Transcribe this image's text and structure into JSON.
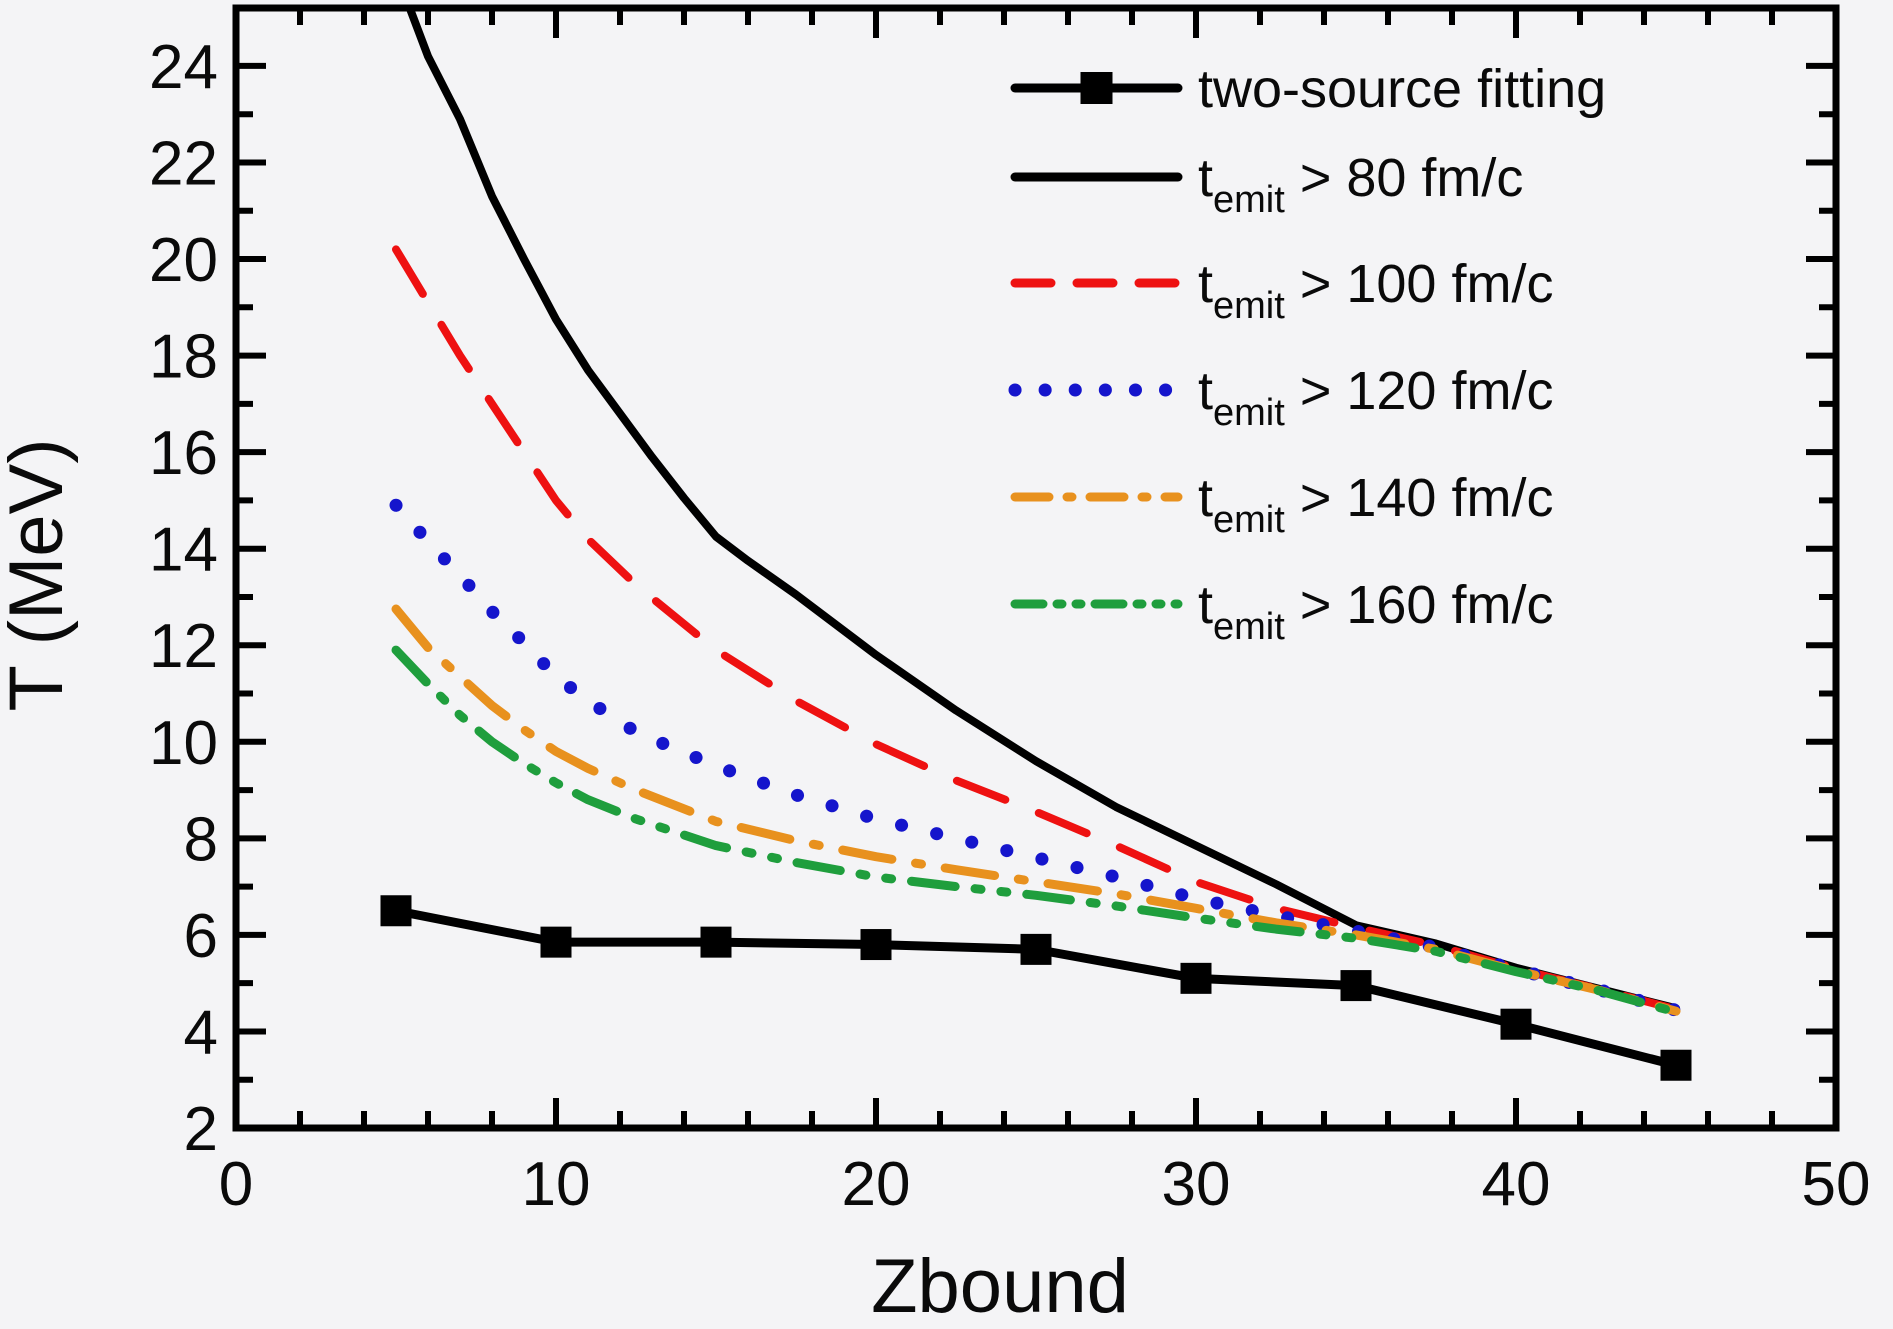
{
  "figure": {
    "background": "#f4f4f6",
    "frame_color": "#000000"
  },
  "axes": {
    "x": {
      "label": "Zbound",
      "min": 0,
      "max": 50,
      "major_ticks": [
        0,
        10,
        20,
        30,
        40,
        50
      ],
      "tick_labels": [
        "0",
        "10",
        "20",
        "30",
        "40",
        "50"
      ],
      "minor_step": 2
    },
    "y": {
      "label": "T (MeV)",
      "min": 2,
      "max": 25.2,
      "major_ticks": [
        2,
        4,
        6,
        8,
        10,
        12,
        14,
        16,
        18,
        20,
        22,
        24
      ],
      "tick_labels": [
        "2",
        "4",
        "6",
        "8",
        "10",
        "12",
        "14",
        "16",
        "18",
        "20",
        "22",
        "24"
      ],
      "minor_step": 1
    }
  },
  "legend": {
    "items": [
      {
        "label": "two-source fitting",
        "sample": "solid-square",
        "color": "#000000"
      },
      {
        "label": "t_emit > 80 fm/c",
        "prefix": "t",
        "sub": "emit",
        "suffix": " > 80 fm/c",
        "sample": "solid",
        "color": "#000000"
      },
      {
        "label": "t_emit > 100 fm/c",
        "prefix": "t",
        "sub": "emit",
        "suffix": " > 100 fm/c",
        "sample": "dashed",
        "color": "#ee1111"
      },
      {
        "label": "t_emit > 120 fm/c",
        "prefix": "t",
        "sub": "emit",
        "suffix": " > 120 fm/c",
        "sample": "dotted",
        "color": "#1515cc"
      },
      {
        "label": "t_emit > 140 fm/c",
        "prefix": "t",
        "sub": "emit",
        "suffix": " > 140 fm/c",
        "sample": "dash-dot",
        "color": "#e8911e"
      },
      {
        "label": "t_emit > 160 fm/c",
        "prefix": "t",
        "sub": "emit",
        "suffix": " > 160 fm/c",
        "sample": "dash-dot-dot",
        "color": "#1f9e3d"
      }
    ]
  },
  "chart_data": {
    "type": "line",
    "title": "",
    "xlabel": "Zbound",
    "ylabel": "T (MeV)",
    "xlim": [
      0,
      50
    ],
    "ylim": [
      2,
      25.2
    ],
    "grid": false,
    "legend_position": "upper right",
    "series": [
      {
        "name": "two-source fitting",
        "style": "solid",
        "marker": "square",
        "color": "#000000",
        "x": [
          5,
          10,
          15,
          20,
          25,
          30,
          35,
          40,
          45
        ],
        "y": [
          6.5,
          5.85,
          5.85,
          5.8,
          5.7,
          5.1,
          4.95,
          4.15,
          3.3
        ]
      },
      {
        "name": "t_emit > 80 fm/c",
        "style": "solid",
        "marker": "none",
        "color": "#000000",
        "x": [
          5.2,
          6,
          7,
          8,
          9,
          10,
          11,
          12,
          13,
          14,
          15,
          16,
          17.5,
          20,
          22.5,
          25,
          27.5,
          30,
          32.5,
          35,
          37.5,
          40,
          42.5,
          45
        ],
        "y": [
          25.6,
          24.2,
          22.9,
          21.3,
          20.0,
          18.75,
          17.7,
          16.8,
          15.9,
          15.05,
          14.25,
          13.75,
          13.05,
          11.8,
          10.65,
          9.6,
          8.65,
          7.85,
          7.05,
          6.2,
          5.82,
          5.32,
          4.9,
          4.48
        ]
      },
      {
        "name": "t_emit > 100 fm/c",
        "style": "dashed",
        "marker": "none",
        "color": "#ee1111",
        "x": [
          5,
          6,
          7,
          8,
          9,
          10,
          11,
          12.5,
          15,
          17.5,
          20,
          22.5,
          25,
          27.5,
          30,
          32.5,
          35,
          37.5,
          40,
          42.5,
          45
        ],
        "y": [
          20.2,
          19.1,
          18.0,
          17.0,
          16.0,
          15.0,
          14.2,
          13.25,
          11.9,
          10.85,
          9.95,
          9.2,
          8.55,
          7.85,
          7.1,
          6.55,
          6.15,
          5.78,
          5.3,
          4.89,
          4.46
        ]
      },
      {
        "name": "t_emit > 120 fm/c",
        "style": "dotted",
        "marker": "none",
        "color": "#1515cc",
        "x": [
          5,
          6,
          7,
          8,
          9,
          10,
          11,
          12.5,
          15,
          17.5,
          20,
          22.5,
          25,
          27.5,
          30,
          32.5,
          35,
          37.5,
          40,
          42.5,
          45
        ],
        "y": [
          14.9,
          14.15,
          13.45,
          12.7,
          12.05,
          11.35,
          10.85,
          10.2,
          9.5,
          8.9,
          8.4,
          8.0,
          7.6,
          7.2,
          6.75,
          6.4,
          6.08,
          5.74,
          5.28,
          4.88,
          4.44
        ]
      },
      {
        "name": "t_emit > 140 fm/c",
        "style": "dash-dot",
        "marker": "none",
        "color": "#e8911e",
        "x": [
          5,
          6,
          7,
          8,
          9,
          10,
          11,
          12.5,
          15,
          17.5,
          20,
          22.5,
          25,
          27.5,
          30,
          32.5,
          35,
          37.5,
          40,
          42.5,
          45
        ],
        "y": [
          12.75,
          11.95,
          11.35,
          10.75,
          10.25,
          9.8,
          9.45,
          9.0,
          8.35,
          7.95,
          7.62,
          7.35,
          7.1,
          6.85,
          6.55,
          6.25,
          6.0,
          5.7,
          5.26,
          4.87,
          4.42
        ]
      },
      {
        "name": "t_emit > 160 fm/c",
        "style": "dash-dot-dot",
        "marker": "none",
        "color": "#1f9e3d",
        "x": [
          5,
          6,
          7,
          8,
          9,
          10,
          11,
          12.5,
          15,
          17.5,
          20,
          22.5,
          25,
          27.5,
          30,
          32.5,
          35,
          37.5,
          40,
          42.5,
          45
        ],
        "y": [
          11.9,
          11.2,
          10.55,
          10.0,
          9.55,
          9.15,
          8.8,
          8.4,
          7.85,
          7.5,
          7.2,
          7.0,
          6.82,
          6.6,
          6.35,
          6.12,
          5.93,
          5.66,
          5.24,
          4.86,
          4.4
        ]
      }
    ]
  }
}
